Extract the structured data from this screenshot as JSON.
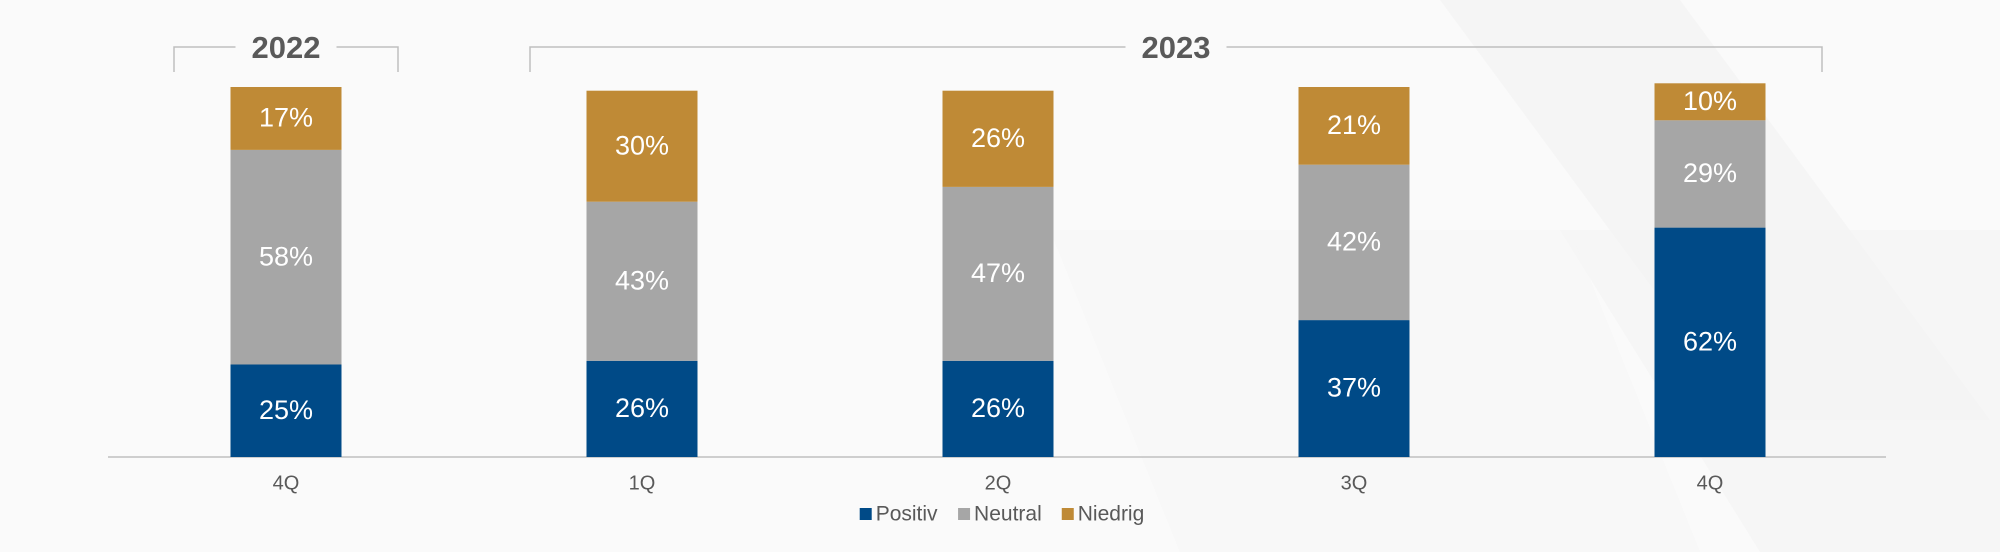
{
  "chart_data": {
    "type": "bar",
    "stacked": true,
    "categories": [
      "4Q",
      "1Q",
      "2Q",
      "3Q",
      "4Q"
    ],
    "groups": [
      {
        "label": "2022",
        "count": 1
      },
      {
        "label": "2023",
        "count": 4
      }
    ],
    "series": [
      {
        "name": "Positiv",
        "color": "#004a87",
        "values": [
          25,
          26,
          26,
          37,
          62
        ],
        "value_labels": [
          "25%",
          "26%",
          "26%",
          "37%",
          "62%"
        ]
      },
      {
        "name": "Neutral",
        "color": "#a6a6a6",
        "values": [
          58,
          43,
          47,
          42,
          29
        ],
        "value_labels": [
          "58%",
          "43%",
          "47%",
          "42%",
          "29%"
        ]
      },
      {
        "name": "Niedrig",
        "color": "#bf8a36",
        "values": [
          17,
          30,
          26,
          21,
          10
        ],
        "value_labels": [
          "17%",
          "30%",
          "26%",
          "21%",
          "10%"
        ]
      }
    ],
    "legend": "bottom"
  }
}
